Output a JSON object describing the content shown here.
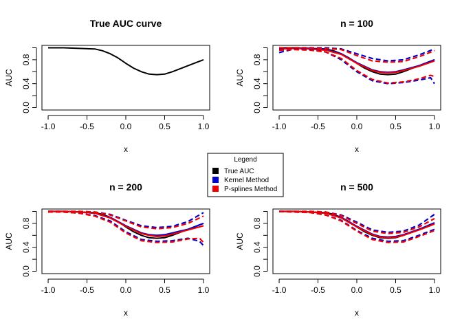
{
  "chart_data": [
    {
      "type": "line",
      "title": "True AUC curve",
      "xlabel": "x",
      "ylabel": "AUC",
      "xlim": [
        -1.0,
        1.0
      ],
      "ylim": [
        0.0,
        1.0
      ],
      "xticks": [
        "-1.0",
        "-0.5",
        "0.0",
        "0.5",
        "1.0"
      ],
      "yticks": [
        "0.0",
        "0.4",
        "0.8"
      ],
      "series": [
        {
          "key": "true",
          "color": "#000000",
          "style": "solid",
          "x": [
            -1.0,
            -0.8,
            -0.6,
            -0.4,
            -0.3,
            -0.2,
            -0.1,
            0.0,
            0.1,
            0.2,
            0.3,
            0.4,
            0.5,
            0.6,
            0.7,
            0.8,
            0.9,
            1.0
          ],
          "y": [
            1.0,
            1.0,
            0.99,
            0.98,
            0.95,
            0.9,
            0.83,
            0.74,
            0.66,
            0.6,
            0.56,
            0.55,
            0.56,
            0.6,
            0.65,
            0.7,
            0.75,
            0.8
          ]
        }
      ]
    },
    {
      "type": "line",
      "title": "n = 100",
      "xlabel": "x",
      "ylabel": "AUC",
      "xlim": [
        -1.0,
        1.0
      ],
      "ylim": [
        0.0,
        1.0
      ],
      "xticks": [
        "-1.0",
        "-0.5",
        "0.0",
        "0.5",
        "1.0"
      ],
      "yticks": [
        "0.0",
        "0.4",
        "0.8"
      ],
      "series": [
        {
          "key": "true",
          "color": "#000000",
          "style": "solid",
          "x": [
            -1.0,
            -0.8,
            -0.6,
            -0.4,
            -0.3,
            -0.2,
            -0.1,
            0.0,
            0.1,
            0.2,
            0.3,
            0.4,
            0.5,
            0.6,
            0.7,
            0.8,
            0.9,
            1.0
          ],
          "y": [
            1.0,
            1.0,
            0.99,
            0.98,
            0.95,
            0.9,
            0.83,
            0.74,
            0.66,
            0.6,
            0.56,
            0.55,
            0.56,
            0.6,
            0.65,
            0.7,
            0.75,
            0.8
          ]
        },
        {
          "key": "kernel",
          "color": "#0000cc",
          "style": "solid",
          "x": [
            -1.0,
            -0.8,
            -0.6,
            -0.4,
            -0.2,
            0.0,
            0.2,
            0.3,
            0.4,
            0.5,
            0.6,
            0.8,
            1.0
          ],
          "y": [
            0.99,
            0.99,
            0.99,
            0.97,
            0.9,
            0.75,
            0.63,
            0.6,
            0.59,
            0.6,
            0.63,
            0.7,
            0.8
          ]
        },
        {
          "key": "pspline",
          "color": "#ee0000",
          "style": "solid",
          "x": [
            -1.0,
            -0.8,
            -0.6,
            -0.4,
            -0.2,
            0.0,
            0.2,
            0.3,
            0.4,
            0.5,
            0.6,
            0.8,
            1.0
          ],
          "y": [
            0.98,
            0.99,
            0.98,
            0.96,
            0.89,
            0.74,
            0.62,
            0.59,
            0.58,
            0.59,
            0.62,
            0.69,
            0.78
          ]
        },
        {
          "key": "kernel",
          "color": "#0000cc",
          "style": "dashed",
          "x": [
            -1.0,
            -0.8,
            -0.6,
            -0.4,
            -0.2,
            0.0,
            0.2,
            0.4,
            0.6,
            0.8,
            1.0
          ],
          "y": [
            0.99,
            1.0,
            1.0,
            1.0,
            0.98,
            0.9,
            0.82,
            0.78,
            0.8,
            0.88,
            0.98
          ]
        },
        {
          "key": "kernel",
          "color": "#0000cc",
          "style": "dashed",
          "x": [
            -1.0,
            -0.8,
            -0.6,
            -0.4,
            -0.2,
            0.0,
            0.2,
            0.4,
            0.6,
            0.8,
            0.95,
            1.0
          ],
          "y": [
            0.92,
            0.98,
            0.97,
            0.93,
            0.8,
            0.6,
            0.45,
            0.4,
            0.42,
            0.46,
            0.5,
            0.4
          ]
        },
        {
          "key": "pspline",
          "color": "#ee0000",
          "style": "dashed",
          "x": [
            -1.0,
            -0.8,
            -0.6,
            -0.4,
            -0.2,
            0.0,
            0.2,
            0.4,
            0.6,
            0.8,
            1.0
          ],
          "y": [
            1.0,
            1.0,
            1.0,
            0.99,
            0.97,
            0.87,
            0.78,
            0.76,
            0.77,
            0.85,
            0.95
          ]
        },
        {
          "key": "pspline",
          "color": "#ee0000",
          "style": "dashed",
          "x": [
            -1.0,
            -0.8,
            -0.6,
            -0.4,
            -0.2,
            0.0,
            0.2,
            0.4,
            0.6,
            0.8,
            0.95,
            1.0
          ],
          "y": [
            0.96,
            0.97,
            0.96,
            0.93,
            0.82,
            0.62,
            0.47,
            0.41,
            0.43,
            0.48,
            0.54,
            0.52
          ]
        }
      ]
    },
    {
      "type": "line",
      "title": "n = 200",
      "xlabel": "x",
      "ylabel": "AUC",
      "xlim": [
        -1.0,
        1.0
      ],
      "ylim": [
        0.0,
        1.0
      ],
      "xticks": [
        "-1.0",
        "-0.5",
        "0.0",
        "0.5",
        "1.0"
      ],
      "yticks": [
        "0.0",
        "0.4",
        "0.8"
      ],
      "series": [
        {
          "key": "true",
          "color": "#000000",
          "style": "solid",
          "x": [
            -1.0,
            -0.8,
            -0.6,
            -0.4,
            -0.3,
            -0.2,
            -0.1,
            0.0,
            0.1,
            0.2,
            0.3,
            0.4,
            0.5,
            0.6,
            0.7,
            0.8,
            0.9,
            1.0
          ],
          "y": [
            1.0,
            1.0,
            0.99,
            0.98,
            0.95,
            0.9,
            0.83,
            0.74,
            0.66,
            0.6,
            0.56,
            0.55,
            0.56,
            0.6,
            0.65,
            0.7,
            0.75,
            0.8
          ]
        },
        {
          "key": "kernel",
          "color": "#0000cc",
          "style": "solid",
          "x": [
            -1.0,
            -0.8,
            -0.6,
            -0.4,
            -0.2,
            0.0,
            0.2,
            0.3,
            0.4,
            0.5,
            0.6,
            0.8,
            1.0
          ],
          "y": [
            1.0,
            1.0,
            0.99,
            0.97,
            0.9,
            0.76,
            0.64,
            0.61,
            0.6,
            0.61,
            0.64,
            0.7,
            0.8
          ]
        },
        {
          "key": "pspline",
          "color": "#ee0000",
          "style": "solid",
          "x": [
            -1.0,
            -0.8,
            -0.6,
            -0.4,
            -0.2,
            0.0,
            0.2,
            0.3,
            0.4,
            0.5,
            0.6,
            0.8,
            1.0
          ],
          "y": [
            1.0,
            1.0,
            0.99,
            0.97,
            0.89,
            0.75,
            0.63,
            0.6,
            0.58,
            0.59,
            0.62,
            0.69,
            0.76
          ]
        },
        {
          "key": "kernel",
          "color": "#0000cc",
          "style": "dashed",
          "x": [
            -1.0,
            -0.8,
            -0.6,
            -0.4,
            -0.2,
            0.0,
            0.2,
            0.4,
            0.6,
            0.8,
            1.0
          ],
          "y": [
            1.0,
            1.0,
            1.0,
            0.99,
            0.95,
            0.85,
            0.76,
            0.73,
            0.75,
            0.83,
            0.98
          ]
        },
        {
          "key": "kernel",
          "color": "#0000cc",
          "style": "dashed",
          "x": [
            -1.0,
            -0.8,
            -0.6,
            -0.4,
            -0.2,
            0.0,
            0.2,
            0.4,
            0.6,
            0.8,
            0.95,
            1.0
          ],
          "y": [
            1.0,
            0.99,
            0.97,
            0.93,
            0.84,
            0.66,
            0.53,
            0.5,
            0.51,
            0.55,
            0.5,
            0.43
          ]
        },
        {
          "key": "pspline",
          "color": "#ee0000",
          "style": "dashed",
          "x": [
            -1.0,
            -0.8,
            -0.6,
            -0.4,
            -0.2,
            0.0,
            0.2,
            0.4,
            0.6,
            0.8,
            1.0
          ],
          "y": [
            1.0,
            1.0,
            1.0,
            0.99,
            0.94,
            0.84,
            0.74,
            0.71,
            0.73,
            0.8,
            0.92
          ]
        },
        {
          "key": "pspline",
          "color": "#ee0000",
          "style": "dashed",
          "x": [
            -1.0,
            -0.8,
            -0.6,
            -0.4,
            -0.2,
            0.0,
            0.2,
            0.4,
            0.6,
            0.8,
            0.95,
            1.0
          ],
          "y": [
            0.99,
            0.99,
            0.97,
            0.92,
            0.82,
            0.64,
            0.51,
            0.48,
            0.49,
            0.54,
            0.55,
            0.48
          ]
        }
      ]
    },
    {
      "type": "line",
      "title": "n = 500",
      "xlabel": "x",
      "ylabel": "AUC",
      "xlim": [
        -1.0,
        1.0
      ],
      "ylim": [
        0.0,
        1.0
      ],
      "xticks": [
        "-1.0",
        "-0.5",
        "0.0",
        "0.5",
        "1.0"
      ],
      "yticks": [
        "0.0",
        "0.4",
        "0.8"
      ],
      "series": [
        {
          "key": "true",
          "color": "#000000",
          "style": "solid",
          "x": [
            -1.0,
            -0.8,
            -0.6,
            -0.4,
            -0.3,
            -0.2,
            -0.1,
            0.0,
            0.1,
            0.2,
            0.3,
            0.4,
            0.5,
            0.6,
            0.7,
            0.8,
            0.9,
            1.0
          ],
          "y": [
            1.0,
            1.0,
            0.99,
            0.98,
            0.95,
            0.9,
            0.83,
            0.74,
            0.66,
            0.6,
            0.56,
            0.55,
            0.56,
            0.6,
            0.65,
            0.7,
            0.75,
            0.8
          ]
        },
        {
          "key": "kernel",
          "color": "#0000cc",
          "style": "solid",
          "x": [
            -1.0,
            -0.8,
            -0.6,
            -0.4,
            -0.2,
            0.0,
            0.2,
            0.3,
            0.4,
            0.5,
            0.6,
            0.8,
            1.0
          ],
          "y": [
            1.0,
            1.0,
            0.99,
            0.97,
            0.9,
            0.75,
            0.62,
            0.58,
            0.57,
            0.58,
            0.61,
            0.7,
            0.81
          ]
        },
        {
          "key": "pspline",
          "color": "#ee0000",
          "style": "solid",
          "x": [
            -1.0,
            -0.8,
            -0.6,
            -0.4,
            -0.2,
            0.0,
            0.2,
            0.3,
            0.4,
            0.5,
            0.6,
            0.8,
            1.0
          ],
          "y": [
            1.0,
            1.0,
            0.99,
            0.97,
            0.89,
            0.74,
            0.61,
            0.57,
            0.56,
            0.57,
            0.6,
            0.69,
            0.79
          ]
        },
        {
          "key": "kernel",
          "color": "#0000cc",
          "style": "dashed",
          "x": [
            -1.0,
            -0.8,
            -0.6,
            -0.4,
            -0.2,
            0.0,
            0.2,
            0.4,
            0.6,
            0.8,
            1.0
          ],
          "y": [
            1.0,
            1.0,
            1.0,
            0.99,
            0.94,
            0.82,
            0.69,
            0.65,
            0.67,
            0.77,
            0.95
          ]
        },
        {
          "key": "kernel",
          "color": "#0000cc",
          "style": "dashed",
          "x": [
            -1.0,
            -0.8,
            -0.6,
            -0.4,
            -0.2,
            0.0,
            0.2,
            0.4,
            0.6,
            0.8,
            1.0
          ],
          "y": [
            1.0,
            0.99,
            0.98,
            0.94,
            0.85,
            0.68,
            0.55,
            0.5,
            0.51,
            0.6,
            0.7
          ]
        },
        {
          "key": "pspline",
          "color": "#ee0000",
          "style": "dashed",
          "x": [
            -1.0,
            -0.8,
            -0.6,
            -0.4,
            -0.2,
            0.0,
            0.2,
            0.4,
            0.6,
            0.8,
            1.0
          ],
          "y": [
            1.0,
            1.0,
            1.0,
            0.99,
            0.93,
            0.8,
            0.67,
            0.63,
            0.65,
            0.74,
            0.88
          ]
        },
        {
          "key": "pspline",
          "color": "#ee0000",
          "style": "dashed",
          "x": [
            -1.0,
            -0.8,
            -0.6,
            -0.4,
            -0.2,
            0.0,
            0.2,
            0.4,
            0.6,
            0.8,
            1.0
          ],
          "y": [
            1.0,
            0.99,
            0.98,
            0.94,
            0.84,
            0.67,
            0.53,
            0.48,
            0.49,
            0.58,
            0.68
          ]
        }
      ]
    }
  ],
  "legend": {
    "title": "Legend",
    "placement": "center",
    "entries": [
      {
        "label": "True AUC",
        "color": "#000000"
      },
      {
        "label": "Kernel Method",
        "color": "#0000cc"
      },
      {
        "label": "P-splines Method",
        "color": "#ee0000"
      }
    ]
  }
}
